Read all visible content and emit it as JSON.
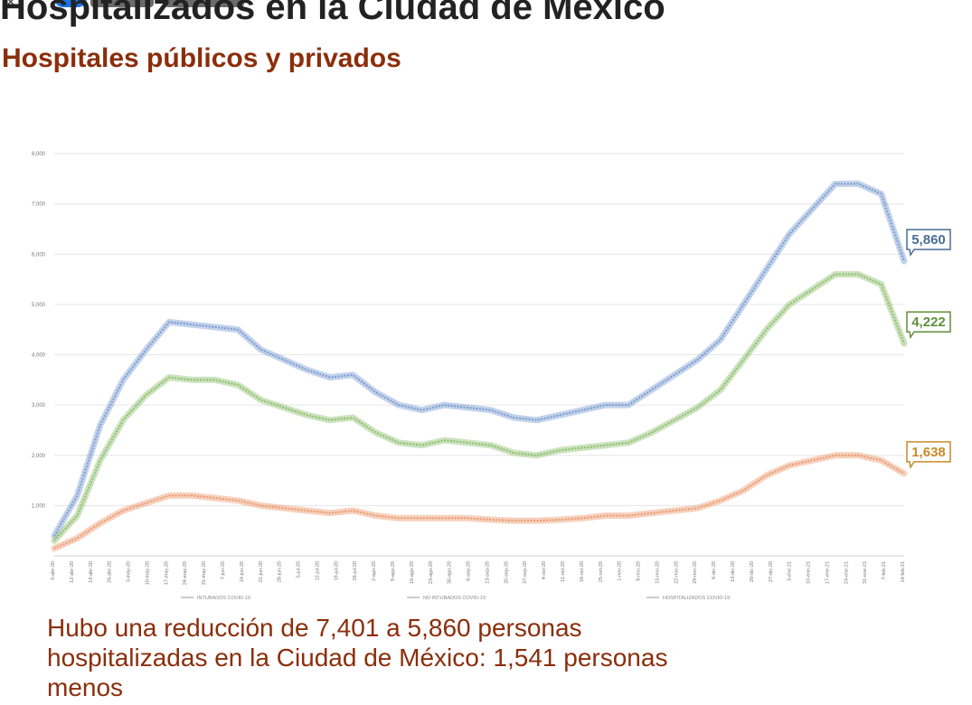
{
  "title": "Hospitalizados en la Ciudad de México",
  "subtitle": "Hospitales públicos y privados",
  "caption": "Hubo una reducción de 7,401 a 5,860 personas hospitalizadas en la Ciudad de México: 1,541 personas menos",
  "colors": {
    "title": "#222222",
    "subtitle": "#8b2e0c",
    "caption": "#8b2e0c",
    "hospitalizados": "#7b9bd1",
    "no_intubados": "#8fbe6e",
    "intubados": "#ec9a6e",
    "label_hospitalizados": "#4a6d96",
    "label_no_intubados": "#5f8f3a",
    "label_intubados": "#c98a2a"
  },
  "chart_data": {
    "type": "line",
    "ylim": [
      0,
      8000
    ],
    "yticks": [
      "1,000",
      "2,000",
      "3,000",
      "4,000",
      "5,000",
      "6,000",
      "7,000",
      "8,000"
    ],
    "grid": true,
    "x_tick_labels": [
      "5-abr-20",
      "12-abr-20",
      "19-abr-20",
      "26-abr-20",
      "3-may-20",
      "10-may-20",
      "17-may-20",
      "24-may-20",
      "31-may-20",
      "7-jun-20",
      "14-jun-20",
      "21-jun-20",
      "28-jun-20",
      "5-jul-20",
      "12-jul-20",
      "19-jul-20",
      "26-jul-20",
      "2-ago-20",
      "9-ago-20",
      "16-ago-20",
      "23-ago-20",
      "30-ago-20",
      "6-sep-20",
      "13-sep-20",
      "20-sep-20",
      "27-sep-20",
      "4-oct-20",
      "11-oct-20",
      "18-oct-20",
      "25-oct-20",
      "1-nov-20",
      "8-nov-20",
      "15-nov-20",
      "22-nov-20",
      "29-nov-20",
      "6-dic-20",
      "13-dic-20",
      "20-dic-20",
      "27-dic-20",
      "3-ene-21",
      "10-ene-21",
      "17-ene-21",
      "24-ene-21",
      "31-ene-21",
      "7-feb-21",
      "14-feb-21"
    ],
    "legend": [
      "INTUBADOS COVID-19",
      "NO INTUBADOS COVID-19",
      "HOSPITALIZADOS COVID-19"
    ],
    "legend_position": "bottom",
    "series": [
      {
        "name": "HOSPITALIZADOS COVID-19",
        "key": "hospitalizados",
        "end_label": "5,860",
        "values": [
          400,
          1200,
          2600,
          3500,
          4100,
          4650,
          4600,
          4550,
          4500,
          4100,
          3900,
          3700,
          3550,
          3600,
          3250,
          3000,
          2900,
          3000,
          2950,
          2900,
          2750,
          2700,
          2800,
          2900,
          3000,
          3000,
          3300,
          3600,
          3900,
          4300,
          5000,
          5700,
          6400,
          6900,
          7400,
          7401,
          7200,
          5860
        ]
      },
      {
        "name": "NO INTUBADOS COVID-19",
        "key": "no_intubados",
        "end_label": "4,222",
        "values": [
          300,
          800,
          1900,
          2700,
          3200,
          3550,
          3500,
          3500,
          3400,
          3100,
          2950,
          2800,
          2700,
          2750,
          2450,
          2250,
          2200,
          2300,
          2250,
          2200,
          2050,
          2000,
          2100,
          2150,
          2200,
          2250,
          2450,
          2700,
          2950,
          3300,
          3900,
          4500,
          5000,
          5300,
          5600,
          5600,
          5400,
          4222
        ]
      },
      {
        "name": "INTUBADOS COVID-19",
        "key": "intubados",
        "end_label": "1,638",
        "values": [
          150,
          350,
          650,
          900,
          1050,
          1200,
          1200,
          1150,
          1100,
          1000,
          950,
          900,
          850,
          900,
          800,
          750,
          750,
          750,
          750,
          720,
          700,
          700,
          720,
          750,
          800,
          800,
          850,
          900,
          950,
          1100,
          1300,
          1600,
          1800,
          1900,
          2000,
          2000,
          1900,
          1638
        ]
      }
    ]
  }
}
